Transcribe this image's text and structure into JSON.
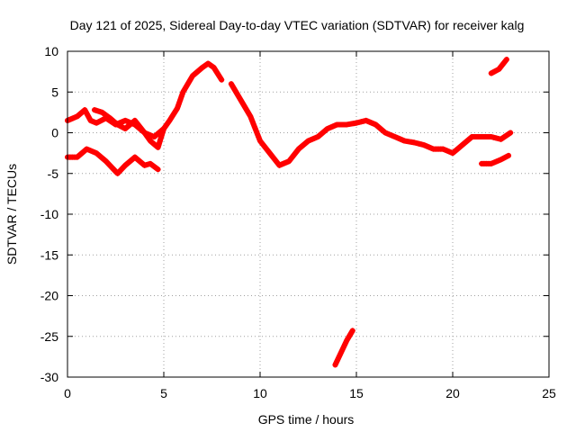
{
  "chart_data": {
    "type": "scatter",
    "title": "Day 121 of 2025, Sidereal Day-to-day VTEC variation (SDTVAR) for receiver kalg",
    "xlabel": "GPS time / hours",
    "ylabel": "SDTVAR / TECUs",
    "xlim": [
      0,
      25
    ],
    "ylim": [
      -30,
      10
    ],
    "xticks": [
      0,
      5,
      10,
      15,
      20,
      25
    ],
    "yticks": [
      10,
      5,
      0,
      -5,
      -10,
      -15,
      -20,
      -25,
      -30
    ],
    "grid": true,
    "legend": "none",
    "marker_color": "#ff0000",
    "series": [
      {
        "name": "track-a",
        "x": [
          0.0,
          0.5,
          0.9,
          1.2,
          1.5,
          2.0,
          2.5,
          3.0,
          3.5,
          4.0,
          4.3,
          4.7,
          5.0,
          5.3,
          5.7,
          6.0,
          6.5,
          7.0,
          7.3,
          7.6,
          8.0
        ],
        "y": [
          1.5,
          2.0,
          2.8,
          1.5,
          1.2,
          1.8,
          1.0,
          1.5,
          1.0,
          0.0,
          -1.0,
          -1.8,
          0.5,
          1.5,
          3.0,
          5.0,
          7.0,
          8.0,
          8.5,
          8.0,
          6.5
        ]
      },
      {
        "name": "track-b",
        "x": [
          1.4,
          1.8,
          2.2,
          2.6,
          3.0,
          3.5,
          4.0,
          4.5,
          5.0
        ],
        "y": [
          2.8,
          2.5,
          1.8,
          1.0,
          0.5,
          1.5,
          0.0,
          -0.5,
          0.5
        ]
      },
      {
        "name": "track-c",
        "x": [
          0.0,
          0.5,
          1.0,
          1.5,
          2.0,
          2.6,
          3.0,
          3.5,
          4.0,
          4.3,
          4.7
        ],
        "y": [
          -3.0,
          -3.0,
          -2.0,
          -2.5,
          -3.5,
          -5.0,
          -4.0,
          -3.0,
          -4.0,
          -3.8,
          -4.5
        ]
      },
      {
        "name": "track-d",
        "x": [
          8.5,
          9.0,
          9.5,
          10.0,
          10.5,
          11.0,
          11.5,
          12.0,
          12.5,
          13.0,
          13.5,
          14.0,
          14.5,
          15.0,
          15.5,
          16.0,
          16.5,
          17.0,
          17.5,
          18.0,
          18.5,
          19.0,
          19.5,
          20.0,
          20.5,
          21.0,
          21.5,
          22.0,
          22.5,
          23.0
        ],
        "y": [
          6.0,
          4.0,
          2.0,
          -1.0,
          -2.5,
          -4.0,
          -3.5,
          -2.0,
          -1.0,
          -0.5,
          0.5,
          1.0,
          1.0,
          1.2,
          1.5,
          1.0,
          0.0,
          -0.5,
          -1.0,
          -1.2,
          -1.5,
          -2.0,
          -2.0,
          -2.5,
          -1.5,
          -0.5,
          -0.5,
          -0.5,
          -0.8,
          0.0
        ]
      },
      {
        "name": "track-e",
        "x": [
          21.5,
          22.0,
          22.5,
          22.9
        ],
        "y": [
          -3.8,
          -3.8,
          -3.3,
          -2.8
        ]
      },
      {
        "name": "track-f",
        "x": [
          22.0,
          22.4,
          22.8
        ],
        "y": [
          7.3,
          7.8,
          9.0
        ]
      },
      {
        "name": "track-g",
        "x": [
          13.9,
          14.2,
          14.5,
          14.8
        ],
        "y": [
          -28.5,
          -27.0,
          -25.5,
          -24.3
        ]
      }
    ]
  }
}
